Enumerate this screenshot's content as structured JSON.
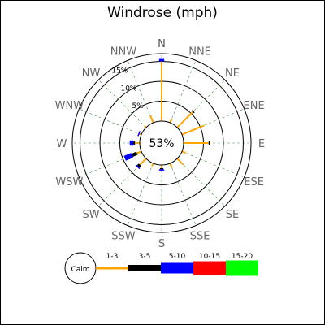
{
  "chart_data": {
    "type": "windrose",
    "title": "Windrose (mph)",
    "directions": [
      "N",
      "NNE",
      "NE",
      "ENE",
      "E",
      "ESE",
      "SE",
      "SSE",
      "S",
      "SSW",
      "SW",
      "WSW",
      "W",
      "WNW",
      "NW",
      "NNW"
    ],
    "rings_pct": [
      5,
      10,
      15
    ],
    "ring_labels": [
      "5%",
      "10%",
      "15%"
    ],
    "calm": {
      "label": "Calm",
      "value": "53%"
    },
    "bins": [
      {
        "label": "1-3",
        "color": "#FFA500"
      },
      {
        "label": "3-5",
        "color": "#000000"
      },
      {
        "label": "5-10",
        "color": "#0000FF"
      },
      {
        "label": "10-15",
        "color": "#FF0000"
      },
      {
        "label": "15-20",
        "color": "#00FF00"
      }
    ],
    "stacks": [
      [
        15.0,
        0.0,
        0.6,
        0.0,
        0.0
      ],
      [
        1.0,
        0.0,
        0.0,
        0.0,
        0.0
      ],
      [
        5.5,
        0.3,
        0.0,
        0.0,
        0.0
      ],
      [
        6.0,
        0.0,
        0.0,
        0.0,
        0.0
      ],
      [
        6.3,
        0.3,
        0.0,
        0.0,
        0.0
      ],
      [
        1.0,
        0.0,
        0.0,
        0.0,
        0.0
      ],
      [
        2.2,
        0.0,
        0.0,
        0.0,
        0.0
      ],
      [
        1.2,
        0.0,
        0.0,
        0.0,
        0.0
      ],
      [
        0.8,
        0.3,
        0.3,
        0.0,
        0.0
      ],
      [
        0.8,
        0.0,
        0.0,
        0.0,
        0.0
      ],
      [
        2.2,
        0.6,
        0.3,
        0.0,
        0.0
      ],
      [
        1.2,
        1.3,
        2.0,
        0.0,
        0.0
      ],
      [
        1.2,
        0.4,
        0.9,
        0.0,
        0.0
      ],
      [
        0.5,
        0.0,
        0.3,
        0.0,
        0.0
      ],
      [
        0.6,
        0.0,
        0.0,
        0.0,
        0.0
      ],
      [
        2.0,
        0.0,
        0.0,
        0.0,
        0.0
      ]
    ]
  }
}
